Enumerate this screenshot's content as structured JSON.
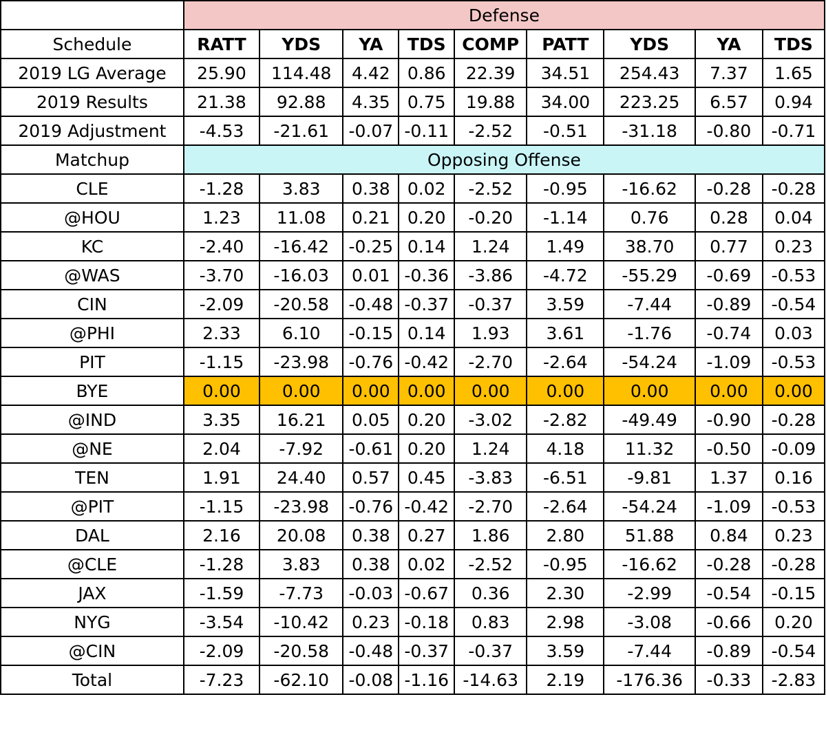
{
  "defense_label": "Defense",
  "opposing_label": "Opposing Offense",
  "schedule_label": "Schedule",
  "matchup_label": "Matchup",
  "columns": [
    "RATT",
    "YDS",
    "YA",
    "TDS",
    "COMP",
    "PATT",
    "YDS",
    "YA",
    "TDS"
  ],
  "summary_rows": [
    {
      "label": "2019 LG Average",
      "values": [
        "25.90",
        "114.48",
        "4.42",
        "0.86",
        "22.39",
        "34.51",
        "254.43",
        "7.37",
        "1.65"
      ]
    },
    {
      "label": "2019 Results",
      "values": [
        "21.38",
        "92.88",
        "4.35",
        "0.75",
        "19.88",
        "34.00",
        "223.25",
        "6.57",
        "0.94"
      ]
    },
    {
      "label": "2019 Adjustment",
      "values": [
        "-4.53",
        "-21.61",
        "-0.07",
        "-0.11",
        "-2.52",
        "-0.51",
        "-31.18",
        "-0.80",
        "-0.71"
      ]
    }
  ],
  "matchups": [
    {
      "label": "CLE",
      "values": [
        "-1.28",
        "3.83",
        "0.38",
        "0.02",
        "-2.52",
        "-0.95",
        "-16.62",
        "-0.28",
        "-0.28"
      ]
    },
    {
      "label": "@HOU",
      "values": [
        "1.23",
        "11.08",
        "0.21",
        "0.20",
        "-0.20",
        "-1.14",
        "0.76",
        "0.28",
        "0.04"
      ]
    },
    {
      "label": "KC",
      "values": [
        "-2.40",
        "-16.42",
        "-0.25",
        "0.14",
        "1.24",
        "1.49",
        "38.70",
        "0.77",
        "0.23"
      ]
    },
    {
      "label": "@WAS",
      "values": [
        "-3.70",
        "-16.03",
        "0.01",
        "-0.36",
        "-3.86",
        "-4.72",
        "-55.29",
        "-0.69",
        "-0.53"
      ]
    },
    {
      "label": "CIN",
      "values": [
        "-2.09",
        "-20.58",
        "-0.48",
        "-0.37",
        "-0.37",
        "3.59",
        "-7.44",
        "-0.89",
        "-0.54"
      ]
    },
    {
      "label": "@PHI",
      "values": [
        "2.33",
        "6.10",
        "-0.15",
        "0.14",
        "1.93",
        "3.61",
        "-1.76",
        "-0.74",
        "0.03"
      ]
    },
    {
      "label": "PIT",
      "values": [
        "-1.15",
        "-23.98",
        "-0.76",
        "-0.42",
        "-2.70",
        "-2.64",
        "-54.24",
        "-1.09",
        "-0.53"
      ]
    },
    {
      "label": "BYE",
      "values": [
        "0.00",
        "0.00",
        "0.00",
        "0.00",
        "0.00",
        "0.00",
        "0.00",
        "0.00",
        "0.00"
      ],
      "highlight": "#ffc000"
    },
    {
      "label": "@IND",
      "values": [
        "3.35",
        "16.21",
        "0.05",
        "0.20",
        "-3.02",
        "-2.82",
        "-49.49",
        "-0.90",
        "-0.28"
      ]
    },
    {
      "label": "@NE",
      "values": [
        "2.04",
        "-7.92",
        "-0.61",
        "0.20",
        "1.24",
        "4.18",
        "11.32",
        "-0.50",
        "-0.09"
      ]
    },
    {
      "label": "TEN",
      "values": [
        "1.91",
        "24.40",
        "0.57",
        "0.45",
        "-3.83",
        "-6.51",
        "-9.81",
        "1.37",
        "0.16"
      ]
    },
    {
      "label": "@PIT",
      "values": [
        "-1.15",
        "-23.98",
        "-0.76",
        "-0.42",
        "-2.70",
        "-2.64",
        "-54.24",
        "-1.09",
        "-0.53"
      ]
    },
    {
      "label": "DAL",
      "values": [
        "2.16",
        "20.08",
        "0.38",
        "0.27",
        "1.86",
        "2.80",
        "51.88",
        "0.84",
        "0.23"
      ]
    },
    {
      "label": "@CLE",
      "values": [
        "-1.28",
        "3.83",
        "0.38",
        "0.02",
        "-2.52",
        "-0.95",
        "-16.62",
        "-0.28",
        "-0.28"
      ]
    },
    {
      "label": "JAX",
      "values": [
        "-1.59",
        "-7.73",
        "-0.03",
        "-0.67",
        "0.36",
        "2.30",
        "-2.99",
        "-0.54",
        "-0.15"
      ]
    },
    {
      "label": "NYG",
      "values": [
        "-3.54",
        "-10.42",
        "0.23",
        "-0.18",
        "0.83",
        "2.98",
        "-3.08",
        "-0.66",
        "0.20"
      ]
    },
    {
      "label": "@CIN",
      "values": [
        "-2.09",
        "-20.58",
        "-0.48",
        "-0.37",
        "-0.37",
        "3.59",
        "-7.44",
        "-0.89",
        "-0.54"
      ]
    }
  ],
  "total_row": {
    "label": "Total",
    "values": [
      "-7.23",
      "-62.10",
      "-0.08",
      "-1.16",
      "-14.63",
      "2.19",
      "-176.36",
      "-0.33",
      "-2.83"
    ]
  },
  "colors": {
    "defense_banner": "#f4c7c7",
    "offense_banner": "#c9f5f7",
    "bye_highlight": "#ffc000"
  }
}
